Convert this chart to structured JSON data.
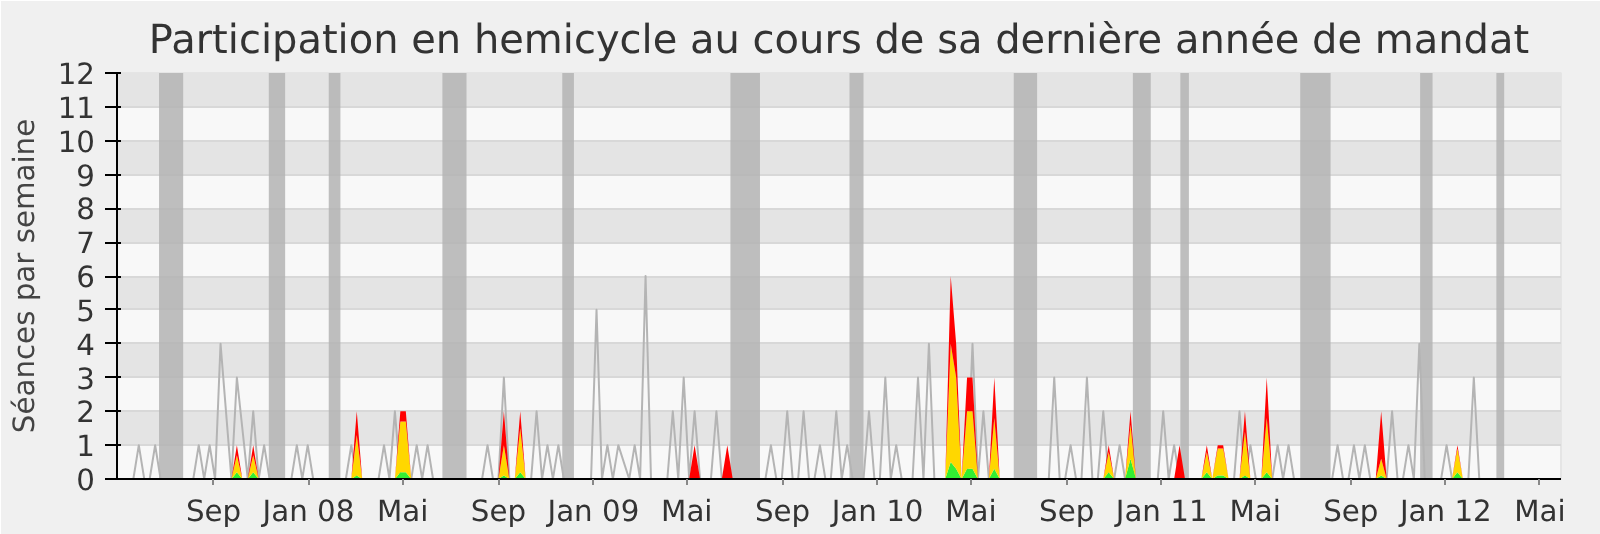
{
  "chart_data": {
    "type": "area",
    "title": "Participation en hemicycle au cours de sa dernière année de mandat",
    "ylabel": "Séances par semaine",
    "xlim": [
      "2007-04-30",
      "2012-05-28"
    ],
    "ylim": [
      0,
      12
    ],
    "yticks": [
      0,
      1,
      2,
      3,
      4,
      5,
      6,
      7,
      8,
      9,
      10,
      11,
      12
    ],
    "xticks": [
      {
        "value": "2007-09-01",
        "label": "Sep"
      },
      {
        "value": "2008-01-01",
        "label": "Jan 08"
      },
      {
        "value": "2008-05-01",
        "label": "Mai"
      },
      {
        "value": "2008-09-01",
        "label": "Sep"
      },
      {
        "value": "2009-01-01",
        "label": "Jan 09"
      },
      {
        "value": "2009-05-01",
        "label": "Mai"
      },
      {
        "value": "2009-09-01",
        "label": "Sep"
      },
      {
        "value": "2010-01-01",
        "label": "Jan 10"
      },
      {
        "value": "2010-05-01",
        "label": "Mai"
      },
      {
        "value": "2010-09-01",
        "label": "Sep"
      },
      {
        "value": "2011-01-01",
        "label": "Jan 11"
      },
      {
        "value": "2011-05-01",
        "label": "Mai"
      },
      {
        "value": "2011-09-01",
        "label": "Sep"
      },
      {
        "value": "2012-01-01",
        "label": "Jan 12"
      },
      {
        "value": "2012-05-01",
        "label": "Mai"
      }
    ],
    "grid": "y",
    "stacked": true,
    "bands": [
      {
        "axis": "x",
        "from": "2007-06-23",
        "to": "2007-07-24",
        "color": "#b4b4b4"
      },
      {
        "axis": "x",
        "from": "2007-11-11",
        "to": "2007-12-02",
        "color": "#b4b4b4"
      },
      {
        "axis": "x",
        "from": "2008-01-27",
        "to": "2008-02-11",
        "color": "#b4b4b4"
      },
      {
        "axis": "x",
        "from": "2008-06-21",
        "to": "2008-07-22",
        "color": "#b4b4b4"
      },
      {
        "axis": "x",
        "from": "2008-11-22",
        "to": "2008-12-07",
        "color": "#b4b4b4"
      },
      {
        "axis": "x",
        "from": "2009-06-26",
        "to": "2009-08-03",
        "color": "#b4b4b4"
      },
      {
        "axis": "x",
        "from": "2009-11-26",
        "to": "2009-12-14",
        "color": "#b4b4b4"
      },
      {
        "axis": "x",
        "from": "2010-06-25",
        "to": "2010-07-25",
        "color": "#b4b4b4"
      },
      {
        "axis": "x",
        "from": "2010-11-25",
        "to": "2010-12-18",
        "color": "#b4b4b4"
      },
      {
        "axis": "x",
        "from": "2011-01-25",
        "to": "2011-02-05",
        "color": "#b4b4b4"
      },
      {
        "axis": "x",
        "from": "2011-06-28",
        "to": "2011-08-06",
        "color": "#b4b4b4"
      },
      {
        "axis": "x",
        "from": "2011-11-29",
        "to": "2011-12-15",
        "color": "#b4b4b4"
      },
      {
        "axis": "x",
        "from": "2012-03-06",
        "to": "2012-03-16",
        "color": "#b4b4b4"
      }
    ],
    "series": [
      {
        "type": "line",
        "color": "#b4b4b4",
        "x": [
          "2007-04-30",
          "2007-05-21",
          "2007-05-28",
          "2007-06-04",
          "2007-06-11",
          "2007-06-18",
          "2007-06-25",
          "2007-08-06",
          "2007-08-13",
          "2007-08-20",
          "2007-08-27",
          "2007-09-03",
          "2007-09-10",
          "2007-09-24",
          "2007-10-01",
          "2007-10-15",
          "2007-10-22",
          "2007-10-29",
          "2007-11-05",
          "2007-11-12",
          "2007-12-10",
          "2007-12-17",
          "2007-12-24",
          "2007-12-31",
          "2008-01-07",
          "2008-02-18",
          "2008-02-25",
          "2008-03-03",
          "2008-03-31",
          "2008-04-07",
          "2008-04-14",
          "2008-04-21",
          "2008-04-28",
          "2008-05-12",
          "2008-05-19",
          "2008-05-26",
          "2008-06-02",
          "2008-06-09",
          "2008-08-11",
          "2008-08-18",
          "2008-08-25",
          "2008-09-01",
          "2008-09-08",
          "2008-09-15",
          "2008-10-13",
          "2008-10-20",
          "2008-10-27",
          "2008-11-03",
          "2008-11-10",
          "2008-11-17",
          "2008-11-24",
          "2008-12-29",
          "2009-01-05",
          "2009-01-12",
          "2009-01-19",
          "2009-01-26",
          "2009-02-02",
          "2009-02-16",
          "2009-02-23",
          "2009-03-02",
          "2009-03-09",
          "2009-03-16",
          "2009-04-06",
          "2009-04-13",
          "2009-04-20",
          "2009-04-27",
          "2009-05-04",
          "2009-05-11",
          "2009-05-18",
          "2009-06-01",
          "2009-06-08",
          "2009-06-15",
          "2009-08-10",
          "2009-08-17",
          "2009-08-24",
          "2009-08-31",
          "2009-09-07",
          "2009-09-14",
          "2009-09-21",
          "2009-09-28",
          "2009-10-05",
          "2009-10-12",
          "2009-10-19",
          "2009-10-26",
          "2009-11-02",
          "2009-11-09",
          "2009-11-16",
          "2009-11-23",
          "2009-11-30",
          "2009-12-14",
          "2009-12-21",
          "2009-12-28",
          "2010-01-04",
          "2010-01-11",
          "2010-01-18",
          "2010-01-25",
          "2010-02-01",
          "2010-02-15",
          "2010-02-22",
          "2010-03-01",
          "2010-03-08",
          "2010-03-15",
          "2010-04-26",
          "2010-05-03",
          "2010-05-10",
          "2010-05-17",
          "2010-05-24",
          "2010-08-09",
          "2010-08-16",
          "2010-08-23",
          "2010-08-30",
          "2010-09-06",
          "2010-09-13",
          "2010-09-20",
          "2010-09-27",
          "2010-10-04",
          "2010-10-11",
          "2010-10-18",
          "2010-10-25",
          "2010-11-01",
          "2010-11-08",
          "2010-11-15",
          "2010-12-27",
          "2011-01-03",
          "2011-01-10",
          "2011-01-17",
          "2011-01-24",
          "2011-04-04",
          "2011-04-11",
          "2011-04-18",
          "2011-04-25",
          "2011-05-02",
          "2011-05-23",
          "2011-05-30",
          "2011-06-06",
          "2011-06-13",
          "2011-06-20",
          "2011-08-08",
          "2011-08-15",
          "2011-08-22",
          "2011-08-29",
          "2011-09-05",
          "2011-09-12",
          "2011-09-19",
          "2011-09-26",
          "2011-10-17",
          "2011-10-24",
          "2011-10-31",
          "2011-11-07",
          "2011-11-14",
          "2011-11-21",
          "2011-11-28",
          "2011-12-05",
          "2011-12-26",
          "2012-01-02",
          "2012-01-09",
          "2012-01-30",
          "2012-02-06",
          "2012-02-13",
          "2012-05-28"
        ],
        "values": [
          0,
          0,
          1,
          0,
          0,
          1,
          0,
          0,
          1,
          0,
          1,
          0,
          4,
          0,
          3,
          0,
          2,
          0,
          1,
          0,
          0,
          1,
          0,
          1,
          0,
          0,
          1,
          0,
          0,
          1,
          0,
          2,
          0,
          0,
          1,
          0,
          1,
          0,
          0,
          1,
          0,
          0,
          3,
          0,
          0,
          2,
          0,
          1,
          0,
          1,
          0,
          0,
          5,
          0,
          1,
          0,
          1,
          0,
          1,
          0,
          6,
          0,
          0,
          2,
          0,
          3,
          0,
          2,
          0,
          0,
          2,
          0,
          0,
          1,
          0,
          0,
          2,
          0,
          0,
          2,
          0,
          0,
          1,
          0,
          0,
          2,
          0,
          1,
          0,
          0,
          2,
          0,
          0,
          3,
          0,
          1,
          0,
          0,
          3,
          0,
          4,
          0,
          0,
          4,
          0,
          2,
          0,
          0,
          3,
          0,
          0,
          1,
          0,
          0,
          3,
          0,
          0,
          2,
          0,
          0,
          1,
          0,
          0,
          2,
          0,
          1,
          0,
          0,
          2,
          0,
          1,
          0,
          0,
          1,
          0,
          1,
          0,
          0,
          1,
          0,
          0,
          1,
          0,
          1,
          0,
          0,
          2,
          0,
          0,
          1,
          0,
          4,
          0,
          0,
          1,
          0,
          0,
          3,
          0,
          0
        ]
      },
      {
        "color": "#33ee33",
        "x": [
          "2007-09-24",
          "2007-10-01",
          "2007-10-08",
          "2007-10-15",
          "2007-10-22",
          "2007-10-29",
          "2008-02-25",
          "2008-03-03",
          "2008-03-10",
          "2008-04-21",
          "2008-04-28",
          "2008-05-05",
          "2008-05-12",
          "2008-09-01",
          "2008-09-08",
          "2008-09-15",
          "2008-09-22",
          "2008-09-29",
          "2008-10-06",
          "2009-05-04",
          "2009-05-11",
          "2009-05-18",
          "2009-06-15",
          "2009-06-22",
          "2009-06-29",
          "2010-03-29",
          "2010-04-05",
          "2010-04-12",
          "2010-04-19",
          "2010-04-26",
          "2010-05-03",
          "2010-05-10",
          "2010-05-24",
          "2010-05-31",
          "2010-06-07",
          "2010-10-18",
          "2010-10-25",
          "2010-11-01",
          "2010-11-15",
          "2010-11-22",
          "2010-11-29",
          "2011-01-17",
          "2011-01-24",
          "2011-01-31",
          "2011-02-21",
          "2011-02-28",
          "2011-03-07",
          "2011-03-14",
          "2011-03-21",
          "2011-03-28",
          "2011-04-11",
          "2011-04-18",
          "2011-04-25",
          "2011-05-09",
          "2011-05-16",
          "2011-05-23",
          "2011-10-03",
          "2011-10-10",
          "2011-10-17",
          "2012-01-09",
          "2012-01-16",
          "2012-01-23"
        ],
        "values": [
          0,
          0.2,
          0,
          0,
          0.2,
          0,
          0,
          0.1,
          0,
          0,
          0.2,
          0.2,
          0,
          0,
          0.1,
          0,
          0,
          0.2,
          0,
          0,
          0,
          0,
          0,
          0,
          0,
          0,
          0.5,
          0.3,
          0,
          0.3,
          0.3,
          0,
          0,
          0.3,
          0,
          0,
          0.2,
          0,
          0,
          0.6,
          0,
          0,
          0,
          0,
          0,
          0.2,
          0,
          0.1,
          0.1,
          0,
          0,
          0.1,
          0,
          0,
          0.2,
          0,
          0,
          0.1,
          0,
          0,
          0.2,
          0
        ]
      },
      {
        "color": "#ffd700",
        "x": [
          "2007-09-24",
          "2007-10-01",
          "2007-10-08",
          "2007-10-15",
          "2007-10-22",
          "2007-10-29",
          "2008-02-25",
          "2008-03-03",
          "2008-03-10",
          "2008-04-21",
          "2008-04-28",
          "2008-05-05",
          "2008-05-12",
          "2008-09-01",
          "2008-09-08",
          "2008-09-15",
          "2008-09-22",
          "2008-09-29",
          "2008-10-06",
          "2009-05-04",
          "2009-05-11",
          "2009-05-18",
          "2009-06-15",
          "2009-06-22",
          "2009-06-29",
          "2010-03-29",
          "2010-04-05",
          "2010-04-12",
          "2010-04-19",
          "2010-04-26",
          "2010-05-03",
          "2010-05-10",
          "2010-05-24",
          "2010-05-31",
          "2010-06-07",
          "2010-10-18",
          "2010-10-25",
          "2010-11-01",
          "2010-11-15",
          "2010-11-22",
          "2010-11-29",
          "2011-01-17",
          "2011-01-24",
          "2011-01-31",
          "2011-02-21",
          "2011-02-28",
          "2011-03-07",
          "2011-03-14",
          "2011-03-21",
          "2011-03-28",
          "2011-04-11",
          "2011-04-18",
          "2011-04-25",
          "2011-05-09",
          "2011-05-16",
          "2011-05-23",
          "2011-10-03",
          "2011-10-10",
          "2011-10-17",
          "2012-01-09",
          "2012-01-16",
          "2012-01-23"
        ],
        "values": [
          0,
          0.5,
          0,
          0,
          0.5,
          0,
          0,
          1.2,
          0,
          0,
          1.5,
          1.5,
          0,
          0,
          0.9,
          0,
          0,
          1.3,
          0,
          0,
          0,
          0,
          0,
          0,
          0,
          0,
          3.5,
          2.7,
          0,
          1.7,
          1.7,
          0,
          0,
          1.5,
          0,
          0,
          0.6,
          0,
          0,
          1,
          0,
          0,
          0,
          0,
          0,
          0.6,
          0,
          0.8,
          0.8,
          0,
          0,
          1.3,
          0,
          0,
          1.6,
          0,
          0,
          0.5,
          0,
          0,
          0.7,
          0
        ]
      },
      {
        "color": "#ff0000",
        "x": [
          "2007-09-24",
          "2007-10-01",
          "2007-10-08",
          "2007-10-15",
          "2007-10-22",
          "2007-10-29",
          "2008-02-25",
          "2008-03-03",
          "2008-03-10",
          "2008-04-21",
          "2008-04-28",
          "2008-05-05",
          "2008-05-12",
          "2008-09-01",
          "2008-09-08",
          "2008-09-15",
          "2008-09-22",
          "2008-09-29",
          "2008-10-06",
          "2009-05-04",
          "2009-05-11",
          "2009-05-18",
          "2009-06-15",
          "2009-06-22",
          "2009-06-29",
          "2010-03-29",
          "2010-04-05",
          "2010-04-12",
          "2010-04-19",
          "2010-04-26",
          "2010-05-03",
          "2010-05-10",
          "2010-05-24",
          "2010-05-31",
          "2010-06-07",
          "2010-10-18",
          "2010-10-25",
          "2010-11-01",
          "2010-11-15",
          "2010-11-22",
          "2010-11-29",
          "2011-01-17",
          "2011-01-24",
          "2011-01-31",
          "2011-02-21",
          "2011-02-28",
          "2011-03-07",
          "2011-03-14",
          "2011-03-21",
          "2011-03-28",
          "2011-04-11",
          "2011-04-18",
          "2011-04-25",
          "2011-05-09",
          "2011-05-16",
          "2011-05-23",
          "2011-10-03",
          "2011-10-10",
          "2011-10-17",
          "2012-01-09",
          "2012-01-16",
          "2012-01-23"
        ],
        "values": [
          0,
          0.3,
          0,
          0,
          0.3,
          0,
          0,
          0.7,
          0,
          0,
          0.3,
          0.3,
          0,
          0,
          1,
          0,
          0,
          0.5,
          0,
          0,
          1,
          0,
          0,
          1,
          0,
          0,
          2,
          1,
          0,
          1,
          1,
          0,
          0,
          1.2,
          0,
          0,
          0.2,
          0,
          0,
          0.4,
          0,
          0,
          1,
          0,
          0,
          0.2,
          0,
          0.1,
          0.1,
          0,
          0,
          0.6,
          0,
          0,
          1.2,
          0,
          0,
          1.4,
          0,
          0,
          0.1,
          0
        ]
      }
    ]
  }
}
